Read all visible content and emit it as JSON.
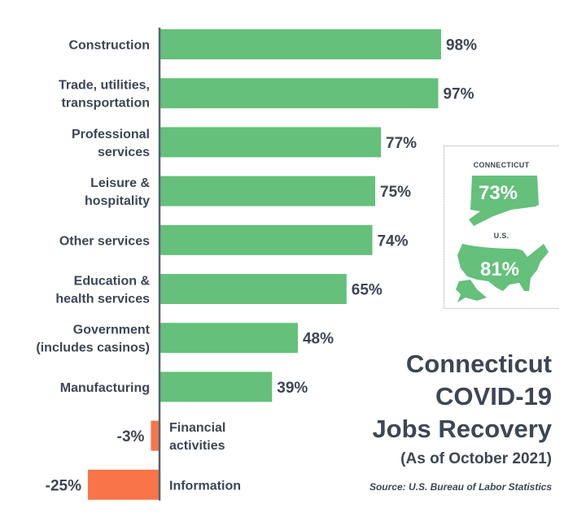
{
  "chart_data": {
    "type": "bar",
    "orientation": "horizontal",
    "title": "Connecticut COVID-19 Jobs Recovery",
    "title_lines": [
      "Connecticut",
      "COVID-19",
      "Jobs Recovery"
    ],
    "subtitle": "(As of October 2021)",
    "source": "Source: U.S. Bureau of Labor Statistics",
    "xlabel": "",
    "ylabel": "",
    "unit": "%",
    "categories": [
      [
        "Construction"
      ],
      [
        "Trade, utilities,",
        "transportation"
      ],
      [
        "Professional",
        "services"
      ],
      [
        "Leisure &",
        "hospitality"
      ],
      [
        "Other services"
      ],
      [
        "Education &",
        "health services"
      ],
      [
        "Government",
        "(includes casinos)"
      ],
      [
        "Manufacturing"
      ],
      [
        "Financial",
        "activities"
      ],
      [
        "Information"
      ]
    ],
    "values": [
      98,
      97,
      77,
      75,
      74,
      65,
      48,
      39,
      -3,
      -25
    ],
    "value_labels": [
      "98%",
      "97%",
      "77%",
      "75%",
      "74%",
      "65%",
      "48%",
      "39%",
      "-3%",
      "-25%"
    ],
    "xlim": [
      -25,
      98
    ],
    "grid": false,
    "colors": {
      "positive": "#64c07a",
      "negative": "#f97448",
      "axis": "#5a6270",
      "text": "#3d4654"
    },
    "inset": [
      {
        "label": "CONNECTICUT",
        "value": 73,
        "value_label": "73%",
        "shape": "connecticut-map"
      },
      {
        "label": "U.S.",
        "value": 81,
        "value_label": "81%",
        "shape": "us-map"
      }
    ]
  }
}
